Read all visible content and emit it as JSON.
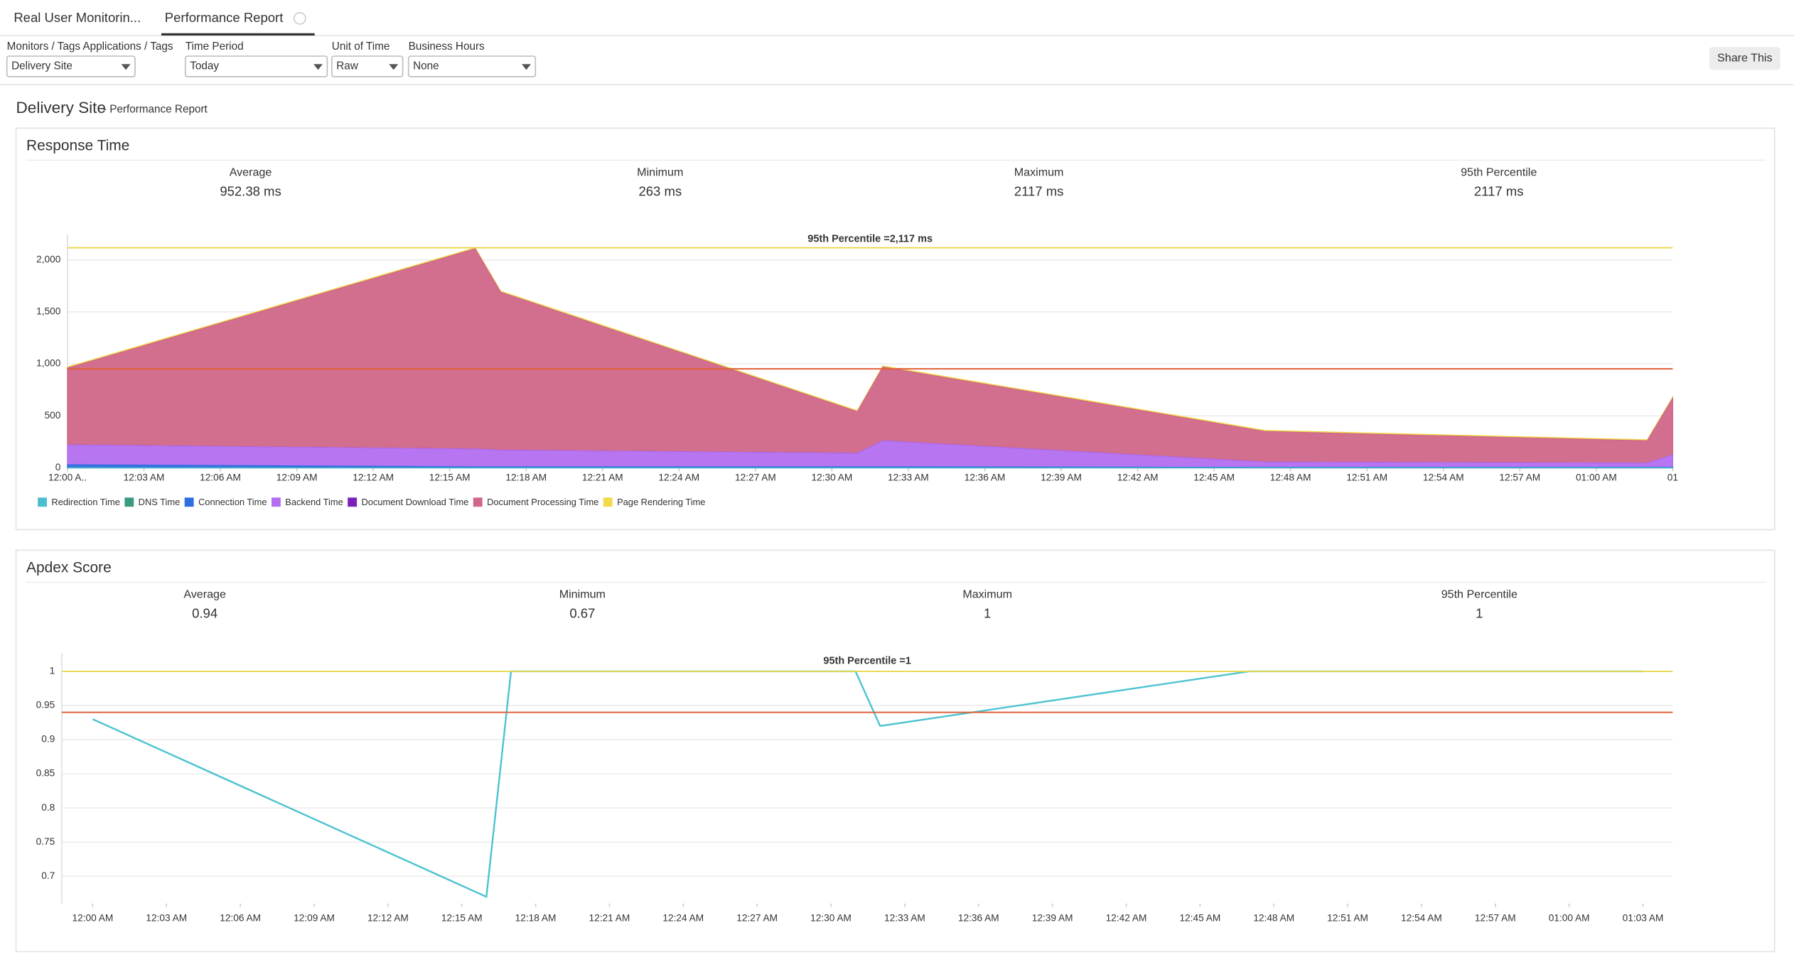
{
  "tabs": [
    "Real User Monitorin...",
    "Performance Report"
  ],
  "filters": [
    {
      "label": "Monitors / Tags Applications / Tags",
      "value": "Delivery Site"
    },
    {
      "label": "Time Period",
      "value": "Today"
    },
    {
      "label": "Unit of Time",
      "value": "Raw"
    },
    {
      "label": "Business Hours",
      "value": "None"
    }
  ],
  "share_button": "Share This",
  "report": {
    "title": "Delivery Site",
    "subtitle": "- Performance Report"
  },
  "chart_data": [
    {
      "type": "area",
      "title": "Response Time",
      "stats": [
        {
          "label": "Average",
          "value": "952.38 ms"
        },
        {
          "label": "Minimum",
          "value": "263 ms"
        },
        {
          "label": "Maximum",
          "value": "2117 ms"
        },
        {
          "label": "95th Percentile",
          "value": "2117 ms"
        }
      ],
      "x": [
        "12:00 AM",
        "12:16 AM",
        "12:17 AM",
        "12:31 AM",
        "12:32 AM",
        "12:47 AM",
        "01:02 AM",
        "01:03 AM"
      ],
      "xlim": [
        "12:00 AM",
        "01:03 AM"
      ],
      "xticks": [
        {
          "value": "12:00 AM",
          "label": "12:00 A.."
        },
        "12:03 AM",
        "12:06 AM",
        "12:09 AM",
        "12:12 AM",
        "12:15 AM",
        "12:18 AM",
        "12:21 AM",
        "12:24 AM",
        "12:27 AM",
        "12:30 AM",
        "12:33 AM",
        "12:36 AM",
        "12:39 AM",
        "12:42 AM",
        "12:45 AM",
        "12:48 AM",
        "12:51 AM",
        "12:54 AM",
        "12:57 AM",
        "01:00 AM",
        {
          "value": "01:03 AM",
          "label": "01"
        }
      ],
      "ylim": [
        0,
        2200
      ],
      "yticks": [
        0,
        500,
        {
          "value": 1000,
          "label": "1,000"
        },
        {
          "value": 1500,
          "label": "1,500"
        },
        {
          "value": 2000,
          "label": "2,000"
        }
      ],
      "grid": true,
      "series": [
        {
          "name": "Redirection Time",
          "color": "#4dbdd0",
          "values": [
            0,
            0,
            0,
            0,
            0,
            0,
            0,
            0
          ]
        },
        {
          "name": "DNS Time",
          "color": "#3a9a82",
          "values": [
            0,
            0,
            0,
            0,
            0,
            0,
            0,
            0
          ]
        },
        {
          "name": "Connection Time",
          "color": "#2d6ee0",
          "values": [
            30,
            10,
            10,
            10,
            10,
            5,
            5,
            5
          ]
        },
        {
          "name": "Backend Time",
          "color": "#b36ef0",
          "values": [
            190,
            170,
            160,
            130,
            250,
            50,
            40,
            120
          ]
        },
        {
          "name": "Document Download Time",
          "color": "#7a22b8",
          "values": [
            0,
            0,
            0,
            0,
            0,
            0,
            0,
            0
          ]
        },
        {
          "name": "Document Processing Time",
          "color": "#d06688",
          "values": [
            740,
            1927,
            1520,
            400,
            710,
            295,
            215,
            545
          ]
        },
        {
          "name": "Page Rendering Time",
          "color": "#f0dc4a",
          "values": [
            10,
            10,
            10,
            10,
            10,
            10,
            10,
            10
          ]
        }
      ],
      "reference_lines": [
        {
          "value": 952.38,
          "color": "#e0603a"
        },
        {
          "value": 2117,
          "color": "#e8d84a",
          "label": "95th Percentile =2,117 ms"
        }
      ]
    },
    {
      "type": "line",
      "title": "Apdex Score",
      "stats": [
        {
          "label": "Average",
          "value": "0.94"
        },
        {
          "label": "Minimum",
          "value": "0.67"
        },
        {
          "label": "Maximum",
          "value": "1"
        },
        {
          "label": "95th Percentile",
          "value": "1"
        }
      ],
      "x": [
        "12:00 AM",
        "12:16 AM",
        "12:17 AM",
        "12:31 AM",
        "12:32 AM",
        "12:47 AM",
        "01:03 AM"
      ],
      "values": [
        0.93,
        0.67,
        1,
        1,
        0.92,
        1,
        1
      ],
      "color": "#4dc3d0",
      "xlim": [
        "12:00 AM",
        "01:03 AM"
      ],
      "xticks": [
        "12:00 AM",
        "12:03 AM",
        "12:06 AM",
        "12:09 AM",
        "12:12 AM",
        "12:15 AM",
        "12:18 AM",
        "12:21 AM",
        "12:24 AM",
        "12:27 AM",
        "12:30 AM",
        "12:33 AM",
        "12:36 AM",
        "12:39 AM",
        "12:42 AM",
        "12:45 AM",
        "12:48 AM",
        "12:51 AM",
        "12:54 AM",
        "12:57 AM",
        "01:00 AM",
        "01:03 AM"
      ],
      "ylim": [
        0.66,
        1.02
      ],
      "yticks": [
        0.7,
        0.75,
        0.8,
        0.85,
        0.9,
        0.95,
        1
      ],
      "grid": true,
      "reference_lines": [
        {
          "value": 0.94,
          "color": "#e0603a"
        },
        {
          "value": 1,
          "color": "#e8d84a",
          "label": "95th Percentile =1"
        }
      ]
    }
  ]
}
